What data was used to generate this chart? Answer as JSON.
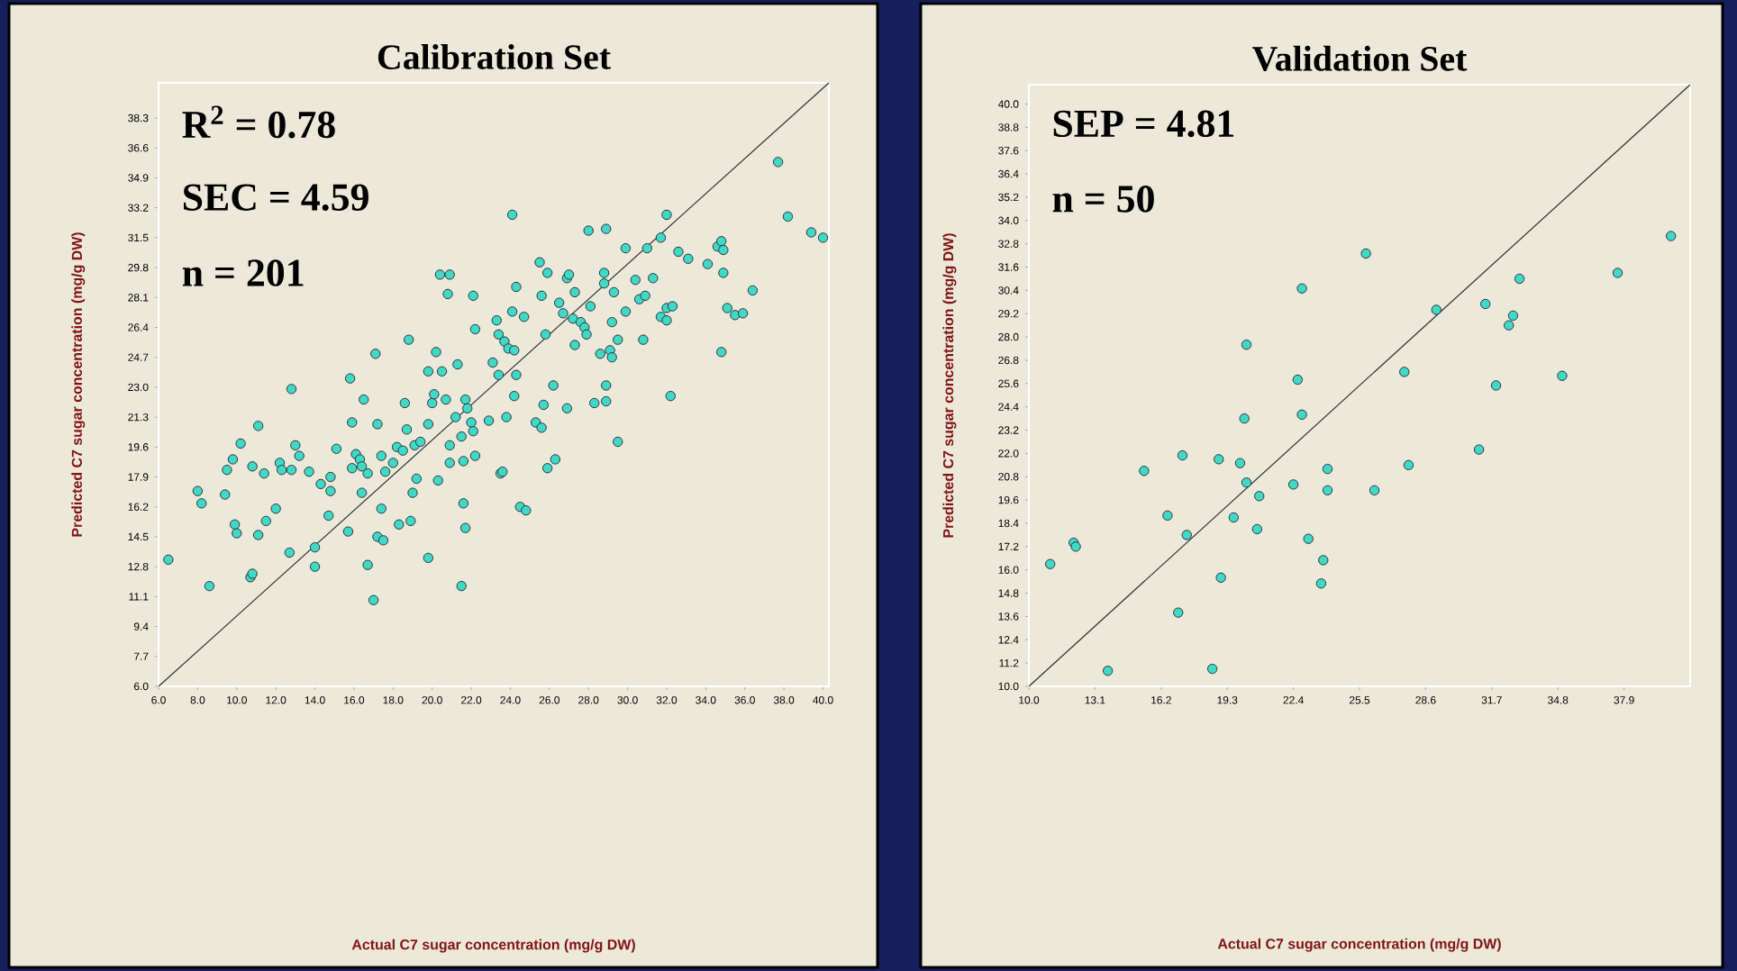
{
  "chart_data": [
    {
      "type": "scatter",
      "title": "Calibration Set",
      "xlabel": "Actual C7 sugar concentration (mg/g DW)",
      "ylabel": "Predicted C7 sugar concentration (mg/g DW)",
      "annotations": [
        "R$^{2}$ = 0.78",
        "SEC = 4.59",
        "n = 201"
      ],
      "xlim": [
        6,
        40.3
      ],
      "ylim": [
        6,
        40.3
      ],
      "marker": "circle",
      "xticks": [
        {
          "value": 6,
          "label": "6.0"
        },
        {
          "value": 8,
          "label": "8.0"
        },
        {
          "value": 10,
          "label": "10.0"
        },
        {
          "value": 12,
          "label": "12.0"
        },
        {
          "value": 14,
          "label": "14.0"
        },
        {
          "value": 16,
          "label": "16.0"
        },
        {
          "value": 18,
          "label": "18.0"
        },
        {
          "value": 20,
          "label": "20.0"
        },
        {
          "value": 22,
          "label": "22.0"
        },
        {
          "value": 24,
          "label": "24.0"
        },
        {
          "value": 26,
          "label": "26.0"
        },
        {
          "value": 28,
          "label": "28.0"
        },
        {
          "value": 30,
          "label": "30.0"
        },
        {
          "value": 32,
          "label": "32.0"
        },
        {
          "value": 34,
          "label": "34.0"
        },
        {
          "value": 36,
          "label": "36.0"
        },
        {
          "value": 38,
          "label": "38.0"
        },
        {
          "value": 40,
          "label": "40.0"
        }
      ],
      "yticks": [
        {
          "value": 6,
          "label": "6.0"
        },
        {
          "value": 7.7,
          "label": "7.7"
        },
        {
          "value": 9.4,
          "label": "9.4"
        },
        {
          "value": 11.1,
          "label": "11.1"
        },
        {
          "value": 12.8,
          "label": "12.8"
        },
        {
          "value": 14.5,
          "label": "14.5"
        },
        {
          "value": 16.2,
          "label": "16.2"
        },
        {
          "value": 17.9,
          "label": "17.9"
        },
        {
          "value": 19.6,
          "label": "19.6"
        },
        {
          "value": 21.3,
          "label": "21.3"
        },
        {
          "value": 23,
          "label": "23.0"
        },
        {
          "value": 24.7,
          "label": "24.7"
        },
        {
          "value": 26.4,
          "label": "26.4"
        },
        {
          "value": 28.1,
          "label": "28.1"
        },
        {
          "value": 29.8,
          "label": "29.8"
        },
        {
          "value": 31.5,
          "label": "31.5"
        },
        {
          "value": 33.2,
          "label": "33.2"
        },
        {
          "value": 34.9,
          "label": "34.9"
        },
        {
          "value": 36.6,
          "label": "36.6"
        },
        {
          "value": 38.3,
          "label": "38.3"
        }
      ],
      "series": [
        {
          "color": "#40d9c8",
          "x": [
            6.5,
            8.6,
            8.0,
            8.2,
            9.4,
            9.5,
            9.8,
            10.2,
            9.9,
            10.0,
            10.7,
            10.8,
            10.8,
            11.1,
            11.1,
            11.4,
            11.5,
            12.0,
            12.2,
            12.3,
            12.8,
            13.0,
            13.2,
            12.7,
            12.8,
            13.7,
            14.0,
            14.0,
            14.3,
            14.8,
            14.8,
            14.7,
            15.1,
            15.7,
            15.8,
            15.9,
            15.9,
            16.1,
            16.3,
            16.4,
            16.4,
            16.5,
            16.7,
            16.7,
            17.1,
            17.2,
            17.0,
            17.2,
            17.4,
            17.5,
            17.4,
            17.6,
            18.0,
            18.2,
            18.3,
            18.5,
            18.6,
            18.7,
            18.8,
            18.9,
            19.0,
            19.1,
            19.2,
            19.4,
            19.8,
            19.8,
            19.8,
            20.0,
            20.1,
            20.2,
            20.3,
            20.4,
            20.5,
            20.7,
            20.8,
            20.9,
            20.9,
            20.9,
            21.2,
            21.3,
            21.5,
            21.5,
            21.6,
            21.6,
            21.7,
            21.7,
            21.8,
            22.0,
            22.1,
            22.1,
            22.2,
            22.2,
            22.9,
            23.1,
            23.3,
            23.4,
            23.4,
            23.5,
            23.6,
            23.7,
            23.8,
            23.9,
            24.1,
            24.1,
            24.2,
            24.2,
            24.3,
            24.3,
            24.7,
            24.5,
            24.8,
            25.3,
            25.5,
            25.6,
            25.6,
            25.7,
            25.8,
            25.9,
            25.9,
            26.2,
            26.3,
            26.5,
            26.7,
            26.9,
            26.9,
            27.0,
            27.2,
            27.3,
            27.3,
            27.6,
            27.8,
            27.9,
            28.0,
            28.1,
            28.3,
            28.6,
            28.8,
            28.8,
            28.9,
            28.9,
            28.9,
            29.1,
            29.2,
            29.2,
            29.3,
            29.5,
            29.5,
            29.9,
            29.9,
            30.4,
            30.6,
            30.8,
            30.9,
            31.0,
            31.3,
            31.7,
            31.7,
            32.0,
            32.0,
            32.0,
            32.3,
            32.2,
            32.6,
            33.1,
            34.1,
            34.6,
            34.8,
            34.9,
            34.8,
            34.9,
            35.1,
            35.5,
            35.9,
            36.4,
            37.7,
            38.2,
            39.4,
            40.0
          ],
          "values": [
            13.2,
            11.7,
            17.1,
            16.4,
            16.9,
            18.3,
            18.9,
            19.8,
            15.2,
            14.7,
            12.2,
            12.4,
            18.5,
            20.8,
            14.6,
            18.1,
            15.4,
            16.1,
            18.7,
            18.3,
            18.3,
            19.7,
            19.1,
            13.6,
            22.9,
            18.2,
            13.9,
            12.8,
            17.5,
            17.9,
            17.1,
            15.7,
            19.5,
            14.8,
            23.5,
            21.0,
            18.4,
            19.2,
            18.9,
            18.5,
            17.0,
            22.3,
            18.1,
            12.9,
            24.9,
            20.9,
            10.9,
            14.5,
            16.1,
            14.3,
            19.1,
            18.2,
            18.7,
            19.6,
            15.2,
            19.4,
            22.1,
            20.6,
            25.7,
            15.4,
            17.0,
            19.7,
            17.8,
            19.9,
            20.9,
            23.9,
            13.3,
            22.1,
            22.6,
            25.0,
            17.7,
            29.4,
            23.9,
            22.3,
            28.3,
            18.7,
            19.7,
            29.4,
            21.3,
            24.3,
            11.7,
            20.2,
            18.8,
            16.4,
            15.0,
            22.3,
            21.8,
            21.0,
            20.5,
            28.2,
            26.3,
            19.1,
            21.1,
            24.4,
            26.8,
            23.7,
            26.0,
            18.1,
            18.2,
            25.6,
            21.3,
            25.2,
            32.8,
            27.3,
            25.1,
            22.5,
            28.7,
            23.7,
            27.0,
            16.2,
            16.0,
            21.0,
            30.1,
            28.2,
            20.7,
            22.0,
            26.0,
            18.4,
            29.5,
            23.1,
            18.9,
            27.8,
            27.2,
            21.8,
            29.2,
            29.4,
            26.9,
            28.4,
            25.4,
            26.7,
            26.4,
            26.0,
            31.9,
            27.6,
            22.1,
            24.9,
            29.5,
            28.9,
            32.0,
            23.1,
            22.2,
            25.1,
            26.7,
            24.7,
            28.4,
            25.7,
            19.9,
            30.9,
            27.3,
            29.1,
            28.0,
            25.7,
            28.2,
            30.9,
            29.2,
            31.5,
            27.0,
            32.8,
            27.5,
            26.8,
            27.6,
            22.5,
            30.7,
            30.3,
            30.0,
            31.0,
            31.3,
            29.5,
            25.0,
            30.8,
            27.5,
            27.1,
            27.2,
            28.5,
            35.8,
            32.7,
            31.8,
            31.5
          ]
        },
        {
          "type": "line",
          "marker": "none",
          "color": "#303030",
          "x": [
            6,
            40.3
          ],
          "values": [
            6,
            40.3
          ]
        }
      ]
    },
    {
      "type": "scatter",
      "title": "Validation Set",
      "xlabel": "Actual C7 sugar concentration (mg/g DW)",
      "ylabel": "Predicted C7 sugar concentration (mg/g DW)",
      "annotations": [
        "SEP = 4.81",
        "n = 50"
      ],
      "xlim": [
        10,
        41
      ],
      "ylim": [
        10,
        41
      ],
      "marker": "circle",
      "xticks": [
        {
          "value": 10,
          "label": "10.0"
        },
        {
          "value": 13.1,
          "label": "13.1"
        },
        {
          "value": 16.2,
          "label": "16.2"
        },
        {
          "value": 19.3,
          "label": "19.3"
        },
        {
          "value": 22.4,
          "label": "22.4"
        },
        {
          "value": 25.5,
          "label": "25.5"
        },
        {
          "value": 28.6,
          "label": "28.6"
        },
        {
          "value": 31.7,
          "label": "31.7"
        },
        {
          "value": 34.8,
          "label": "34.8"
        },
        {
          "value": 37.9,
          "label": "37.9"
        }
      ],
      "yticks": [
        {
          "value": 10,
          "label": "10.0"
        },
        {
          "value": 11.2,
          "label": "11.2"
        },
        {
          "value": 12.4,
          "label": "12.4"
        },
        {
          "value": 13.6,
          "label": "13.6"
        },
        {
          "value": 14.8,
          "label": "14.8"
        },
        {
          "value": 16,
          "label": "16.0"
        },
        {
          "value": 17.2,
          "label": "17.2"
        },
        {
          "value": 18.4,
          "label": "18.4"
        },
        {
          "value": 19.6,
          "label": "19.6"
        },
        {
          "value": 20.8,
          "label": "20.8"
        },
        {
          "value": 22,
          "label": "22.0"
        },
        {
          "value": 23.2,
          "label": "23.2"
        },
        {
          "value": 24.4,
          "label": "24.4"
        },
        {
          "value": 25.6,
          "label": "25.6"
        },
        {
          "value": 26.8,
          "label": "26.8"
        },
        {
          "value": 28,
          "label": "28.0"
        },
        {
          "value": 29.2,
          "label": "29.2"
        },
        {
          "value": 30.4,
          "label": "30.4"
        },
        {
          "value": 31.6,
          "label": "31.6"
        },
        {
          "value": 32.8,
          "label": "32.8"
        },
        {
          "value": 34,
          "label": "34.0"
        },
        {
          "value": 35.2,
          "label": "35.2"
        },
        {
          "value": 36.4,
          "label": "36.4"
        },
        {
          "value": 37.6,
          "label": "37.6"
        },
        {
          "value": 38.8,
          "label": "38.8"
        },
        {
          "value": 40,
          "label": "40.0"
        }
      ],
      "series": [
        {
          "color": "#40d9c8",
          "x": [
            11.0,
            12.1,
            12.2,
            13.7,
            15.4,
            16.5,
            17.0,
            17.2,
            17.4,
            18.6,
            18.9,
            19.0,
            19.6,
            19.9,
            20.1,
            20.2,
            20.2,
            20.8,
            20.7,
            22.4,
            22.6,
            22.8,
            22.8,
            23.1,
            23.8,
            23.7,
            24.0,
            24.0,
            25.8,
            26.2,
            27.6,
            27.8,
            29.1,
            31.1,
            31.4,
            31.9,
            32.5,
            32.7,
            33.0,
            35.0,
            37.6,
            40.1
          ],
          "values": [
            16.3,
            17.4,
            17.2,
            10.8,
            21.1,
            18.8,
            13.8,
            21.9,
            17.8,
            10.9,
            21.7,
            15.6,
            18.7,
            21.5,
            23.8,
            27.6,
            20.5,
            19.8,
            18.1,
            20.4,
            25.8,
            30.5,
            24.0,
            17.6,
            16.5,
            15.3,
            21.2,
            20.1,
            32.3,
            20.1,
            26.2,
            21.4,
            29.4,
            22.2,
            29.7,
            25.5,
            28.6,
            29.1,
            31.0,
            26.0,
            31.3,
            33.2
          ]
        },
        {
          "type": "line",
          "marker": "none",
          "color": "#303030",
          "x": [
            10,
            41
          ],
          "values": [
            10,
            41
          ]
        }
      ]
    }
  ]
}
